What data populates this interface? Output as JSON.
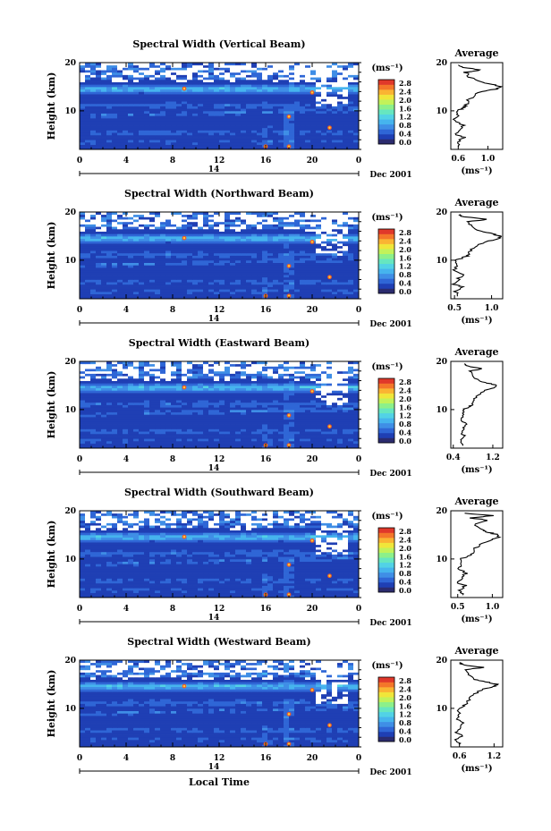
{
  "chart_data": [
    {
      "type": "heatmap",
      "title": "Spectral Width (Vertical Beam)",
      "ylabel": "Height (km)",
      "xticks": [
        "0",
        "4",
        "8",
        "12",
        "16",
        "20",
        "0"
      ],
      "date_label": "14",
      "month_label": "Dec 2001",
      "colorbar_unit": "(ms⁻¹)",
      "colorbar_ticks": [
        "2.8",
        "2.4",
        "2.0",
        "1.6",
        "1.2",
        "0.8",
        "0.4",
        "0.0"
      ],
      "xlim": [
        0,
        24
      ],
      "ylim": [
        2,
        20
      ],
      "average": {
        "title": "Average",
        "xticks": [
          "0.6",
          "1.0"
        ],
        "xlim": [
          0.5,
          1.2
        ],
        "unit": "(ms⁻¹)",
        "profile": [
          [
            2.5,
            0.62
          ],
          [
            3.5,
            0.6
          ],
          [
            4.5,
            0.68
          ],
          [
            5,
            0.58
          ],
          [
            6,
            0.6
          ],
          [
            7,
            0.66
          ],
          [
            8,
            0.55
          ],
          [
            9,
            0.6
          ],
          [
            10,
            0.58
          ],
          [
            10.5,
            0.65
          ],
          [
            11,
            0.7
          ],
          [
            12,
            0.72
          ],
          [
            13,
            0.8
          ],
          [
            14,
            0.9
          ],
          [
            14.5,
            1.1
          ],
          [
            15,
            1.2
          ],
          [
            15.5,
            1.05
          ],
          [
            16,
            0.9
          ],
          [
            17,
            0.75
          ],
          [
            18,
            0.7
          ],
          [
            18.5,
            0.9
          ],
          [
            19,
            0.65
          ],
          [
            19.5,
            0.6
          ]
        ]
      }
    },
    {
      "type": "heatmap",
      "title": "Spectral Width (Northward Beam)",
      "ylabel": "Height (km)",
      "xticks": [
        "0",
        "4",
        "8",
        "12",
        "16",
        "20",
        "0"
      ],
      "date_label": "14",
      "month_label": "Dec 2001",
      "colorbar_unit": "(ms⁻¹)",
      "colorbar_ticks": [
        "2.8",
        "2.4",
        "2.0",
        "1.6",
        "1.2",
        "0.8",
        "0.4",
        "0.0"
      ],
      "xlim": [
        0,
        24
      ],
      "ylim": [
        2,
        20
      ],
      "average": {
        "title": "Average",
        "xticks": [
          "0.5",
          "1.0"
        ],
        "xlim": [
          0.45,
          1.15
        ],
        "unit": "(ms⁻¹)",
        "profile": [
          [
            2.5,
            0.55
          ],
          [
            3.5,
            0.52
          ],
          [
            4.5,
            0.62
          ],
          [
            5,
            0.5
          ],
          [
            6,
            0.55
          ],
          [
            7,
            0.6
          ],
          [
            8,
            0.5
          ],
          [
            9,
            0.55
          ],
          [
            10,
            0.52
          ],
          [
            10.5,
            0.6
          ],
          [
            11,
            0.68
          ],
          [
            12,
            0.72
          ],
          [
            13,
            0.8
          ],
          [
            14,
            0.95
          ],
          [
            14.5,
            1.1
          ],
          [
            15,
            1.12
          ],
          [
            15.5,
            1.0
          ],
          [
            16,
            0.85
          ],
          [
            17,
            0.72
          ],
          [
            18,
            0.7
          ],
          [
            18.5,
            0.95
          ],
          [
            19,
            0.62
          ],
          [
            19.5,
            0.58
          ]
        ]
      }
    },
    {
      "type": "heatmap",
      "title": "Spectral Width (Eastward Beam)",
      "ylabel": "Height (km)",
      "xticks": [
        "0",
        "4",
        "8",
        "12",
        "16",
        "20",
        "0"
      ],
      "date_label": "14",
      "month_label": "Dec 2001",
      "colorbar_unit": "(ms⁻¹)",
      "colorbar_ticks": [
        "2.8",
        "2.4",
        "2.0",
        "1.6",
        "1.2",
        "0.8",
        "0.4",
        "0.0"
      ],
      "xlim": [
        0,
        24
      ],
      "ylim": [
        2,
        20
      ],
      "average": {
        "title": "Average",
        "xticks": [
          "0.4",
          "1.2"
        ],
        "xlim": [
          0.35,
          1.4
        ],
        "unit": "(ms⁻¹)",
        "profile": [
          [
            2.5,
            0.6
          ],
          [
            3.5,
            0.55
          ],
          [
            4.5,
            0.65
          ],
          [
            5,
            0.55
          ],
          [
            6,
            0.6
          ],
          [
            7,
            0.65
          ],
          [
            8,
            0.55
          ],
          [
            9,
            0.6
          ],
          [
            10,
            0.6
          ],
          [
            10.5,
            0.7
          ],
          [
            11,
            0.78
          ],
          [
            12,
            0.82
          ],
          [
            13,
            0.9
          ],
          [
            14,
            1.05
          ],
          [
            14.5,
            1.25
          ],
          [
            15,
            1.3
          ],
          [
            15.5,
            1.1
          ],
          [
            16,
            0.9
          ],
          [
            17,
            0.8
          ],
          [
            18,
            0.75
          ],
          [
            18.5,
            1.0
          ],
          [
            19,
            0.7
          ],
          [
            19.5,
            0.62
          ]
        ]
      }
    },
    {
      "type": "heatmap",
      "title": "Spectral Width (Southward Beam)",
      "ylabel": "Height (km)",
      "xticks": [
        "0",
        "4",
        "8",
        "12",
        "16",
        "20",
        "0"
      ],
      "date_label": "14",
      "month_label": "Dec 2001",
      "colorbar_unit": "(ms⁻¹)",
      "colorbar_ticks": [
        "2.8",
        "2.4",
        "2.0",
        "1.6",
        "1.2",
        "0.8",
        "0.4",
        "0.0"
      ],
      "xlim": [
        0,
        24
      ],
      "ylim": [
        2,
        20
      ],
      "average": {
        "title": "Average",
        "xticks": [
          "0.5",
          "1.0"
        ],
        "xlim": [
          0.4,
          1.15
        ],
        "unit": "(ms⁻¹)",
        "profile": [
          [
            2.5,
            0.58
          ],
          [
            3.5,
            0.52
          ],
          [
            4.5,
            0.62
          ],
          [
            5,
            0.5
          ],
          [
            6,
            0.55
          ],
          [
            7,
            0.62
          ],
          [
            8,
            0.52
          ],
          [
            9,
            0.56
          ],
          [
            10,
            0.55
          ],
          [
            10.5,
            0.62
          ],
          [
            11,
            0.7
          ],
          [
            12,
            0.74
          ],
          [
            13,
            0.82
          ],
          [
            14,
            0.98
          ],
          [
            14.5,
            1.1
          ],
          [
            15,
            1.08
          ],
          [
            15.5,
            0.95
          ],
          [
            16,
            0.85
          ],
          [
            17,
            0.72
          ],
          [
            18,
            0.95
          ],
          [
            18.5,
            0.7
          ],
          [
            19,
            1.0
          ],
          [
            19.5,
            0.6
          ]
        ]
      }
    },
    {
      "type": "heatmap",
      "title": "Spectral Width (Westward Beam)",
      "ylabel": "Height (km)",
      "xticks": [
        "0",
        "4",
        "8",
        "12",
        "16",
        "20",
        "0"
      ],
      "date_label": "14",
      "month_label": "Dec 2001",
      "colorbar_unit": "(ms⁻¹)",
      "colorbar_ticks": [
        "2.8",
        "2.4",
        "2.0",
        "1.6",
        "1.2",
        "0.8",
        "0.4",
        "0.0"
      ],
      "xlim": [
        0,
        24
      ],
      "ylim": [
        2,
        20
      ],
      "average": {
        "title": "Average",
        "xticks": [
          "0.6",
          "1.2"
        ],
        "xlim": [
          0.45,
          1.35
        ],
        "unit": "(ms⁻¹)",
        "profile": [
          [
            2.5,
            0.6
          ],
          [
            3.5,
            0.55
          ],
          [
            4.5,
            0.65
          ],
          [
            5,
            0.55
          ],
          [
            6,
            0.6
          ],
          [
            7,
            0.65
          ],
          [
            8,
            0.55
          ],
          [
            9,
            0.6
          ],
          [
            10,
            0.58
          ],
          [
            10.5,
            0.66
          ],
          [
            11,
            0.72
          ],
          [
            12,
            0.78
          ],
          [
            13,
            0.86
          ],
          [
            14,
            1.0
          ],
          [
            14.5,
            1.2
          ],
          [
            15,
            1.25
          ],
          [
            15.5,
            1.05
          ],
          [
            16,
            0.88
          ],
          [
            17,
            0.75
          ],
          [
            18,
            0.72
          ],
          [
            18.5,
            1.0
          ],
          [
            19,
            0.66
          ],
          [
            19.5,
            0.6
          ]
        ]
      }
    }
  ],
  "figure": {
    "xlabel": "Local Time",
    "colormap": [
      "#2b2b6e",
      "#1f3fb4",
      "#2f66d6",
      "#3f8ee6",
      "#46b4ee",
      "#52d2e6",
      "#66e6c0",
      "#8cf08a",
      "#c2f25a",
      "#f0e63a",
      "#fab432",
      "#f4762a",
      "#e0382a"
    ]
  }
}
